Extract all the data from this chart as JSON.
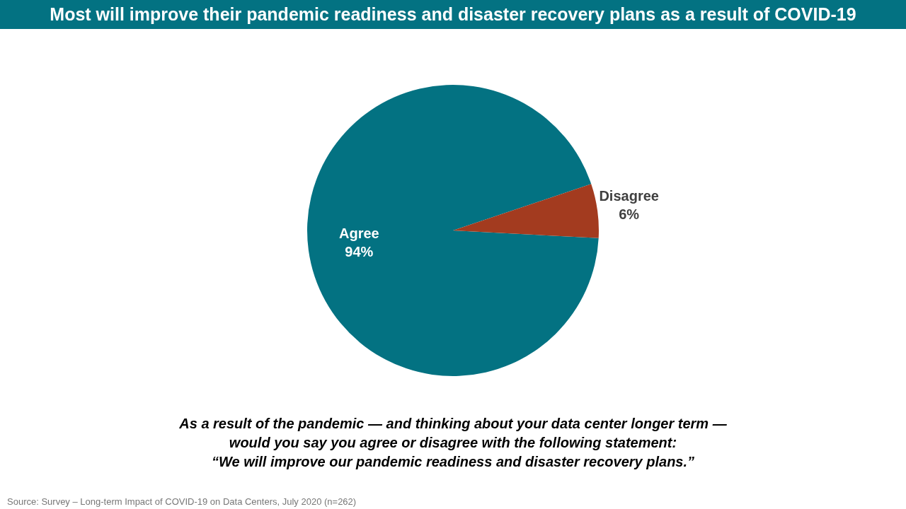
{
  "chart_data": {
    "type": "pie",
    "title": "Most will improve their pandemic readiness and disaster recovery plans as a result of COVID-19",
    "categories": [
      "Agree",
      "Disagree"
    ],
    "values": [
      94,
      6
    ],
    "colors": [
      "#037282",
      "#a33b1f"
    ],
    "value_labels": [
      "94%",
      "6%"
    ],
    "legend": false,
    "annotations": [
      "As a result of the pandemic — and thinking about your data center longer term —\nwould you say you agree or disagree with the following statement:\n“We will improve our pandemic readiness and disaster recovery plans.”",
      "Source: Survey – Long-term Impact of COVID-19 on Data Centers, July 2020 (n=262)"
    ]
  }
}
